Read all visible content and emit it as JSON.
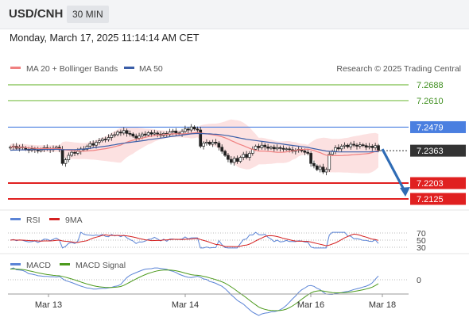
{
  "header": {
    "symbol": "USD/CNH",
    "timeframe": "30 MIN",
    "datetime": "Monday, March 17, 2025 11:14:14 AM CET"
  },
  "legend": {
    "ma20_label": "MA 20 + Bollinger Bands",
    "ma50_label": "MA 50",
    "credit": "Research © 2025 Trading Central",
    "rsi_label": "RSI",
    "rsi_ma_label": "9MA",
    "macd_label": "MACD",
    "macd_signal_label": "MACD Signal"
  },
  "colors": {
    "ma20": "#f08080",
    "ma50": "#3b5ea8",
    "band_fill": "#fcdede",
    "resistance_green": "#7cbf4a",
    "pivot_blue": "#4a7fe0",
    "support_red": "#e02020",
    "current_price_bg": "#333333",
    "arrow": "#2f6cb5",
    "rsi": "#5b84d6",
    "rsi_ma": "#d42020",
    "macd": "#5b84d6",
    "macd_signal": "#4c9a1c"
  },
  "chart_data": {
    "type": "candlestick",
    "x_ticks": [
      "Mar 13",
      "Mar 14",
      "Mar 16",
      "Mar 18"
    ],
    "price_range": [
      7.207,
      7.272
    ],
    "levels": [
      {
        "label": "7.2688",
        "value": 7.2688,
        "kind": "resistance"
      },
      {
        "label": "7.2610",
        "value": 7.261,
        "kind": "resistance"
      },
      {
        "label": "7.2479",
        "value": 7.2479,
        "kind": "pivot"
      },
      {
        "label": "7.2363",
        "value": 7.2363,
        "kind": "current"
      },
      {
        "label": "7.2203",
        "value": 7.2203,
        "kind": "support"
      },
      {
        "label": "7.2125",
        "value": 7.2125,
        "kind": "support"
      }
    ],
    "closes": [
      7.238,
      7.2385,
      7.2375,
      7.2382,
      7.2378,
      7.237,
      7.2365,
      7.2372,
      7.2368,
      7.2362,
      7.237,
      7.2378,
      7.2372,
      7.2368,
      7.2375,
      7.238,
      7.237,
      7.23,
      7.2318,
      7.234,
      7.2355,
      7.235,
      7.236,
      7.2372,
      7.237,
      7.2385,
      7.2398,
      7.239,
      7.2405,
      7.2412,
      7.242,
      7.2418,
      7.2428,
      7.244,
      7.2442,
      7.2455,
      7.245,
      7.2462,
      7.2448,
      7.2445,
      7.2435,
      7.2425,
      7.2435,
      7.2445,
      7.244,
      7.2452,
      7.2445,
      7.245,
      7.2445,
      7.2438,
      7.2448,
      7.2442,
      7.2455,
      7.246,
      7.245,
      7.2445,
      7.2458,
      7.247,
      7.2465,
      7.248,
      7.247,
      7.2465,
      7.2385,
      7.24,
      7.2405,
      7.2395,
      7.2405,
      7.24,
      7.238,
      7.236,
      7.234,
      7.232,
      7.2305,
      7.2325,
      7.231,
      7.233,
      7.2345,
      7.233,
      7.235,
      7.237,
      7.2385,
      7.2378,
      7.239,
      7.2382,
      7.2375,
      7.238,
      7.2372,
      7.2378,
      7.2375,
      7.237,
      7.2372,
      7.2368,
      7.236,
      7.2365,
      7.237,
      7.2362,
      7.2355,
      7.235,
      7.23,
      7.2288,
      7.227,
      7.2282,
      7.2258,
      7.227,
      7.2345,
      7.236,
      7.2378,
      7.2372,
      7.2385,
      7.239,
      7.2382,
      7.2395,
      7.239,
      7.2385,
      7.2392,
      7.2388,
      7.238,
      7.2385,
      7.2378,
      7.2388,
      7.2363
    ],
    "ma50": [
      7.2365,
      7.2366,
      7.2366,
      7.2367,
      7.2367,
      7.2367,
      7.2368,
      7.2368,
      7.2368,
      7.2368,
      7.2368,
      7.2369,
      7.2369,
      7.2369,
      7.2369,
      7.237,
      7.2369,
      7.2368,
      7.2368,
      7.2368,
      7.2368,
      7.2368,
      7.2369,
      7.237,
      7.2371,
      7.2373,
      7.2375,
      7.2377,
      7.2379,
      7.2381,
      7.2383,
      7.2385,
      7.2387,
      7.239,
      7.2392,
      7.2395,
      7.2397,
      7.24,
      7.2402,
      7.2404,
      7.2406,
      7.2408,
      7.241,
      7.2412,
      7.2414,
      7.2417,
      7.2419,
      7.2421,
      7.2423,
      7.2425,
      7.2427,
      7.2429,
      7.2432,
      7.2434,
      7.2436,
      7.2438,
      7.244,
      7.2442,
      7.2444,
      7.2446,
      7.2447,
      7.2448,
      7.2447,
      7.2447,
      7.2446,
      7.2446,
      7.2445,
      7.2444,
      7.2443,
      7.2441,
      7.2439,
      7.2437,
      7.2434,
      7.2431,
      7.2428,
      7.2425,
      7.2422,
      7.2419,
      7.2417,
      7.2415,
      7.2413,
      7.2411,
      7.2409,
      7.2407,
      7.2405,
      7.2403,
      7.2401,
      7.2399,
      7.2397,
      7.2395,
      7.2393,
      7.2391,
      7.2389,
      7.2387,
      7.2385,
      7.2383,
      7.2381,
      7.2379,
      7.2376,
      7.2373,
      7.237,
      7.2367,
      7.2364,
      7.2361,
      7.236,
      7.2359,
      7.2358,
      7.2357,
      7.2357,
      7.2357,
      7.2357,
      7.2357,
      7.2357,
      7.2357,
      7.2357,
      7.2357,
      7.2357,
      7.2357,
      7.2358,
      7.2358,
      7.2358
    ],
    "rsi_axis": [
      70,
      50,
      30
    ],
    "macd_axis": [
      0
    ]
  }
}
